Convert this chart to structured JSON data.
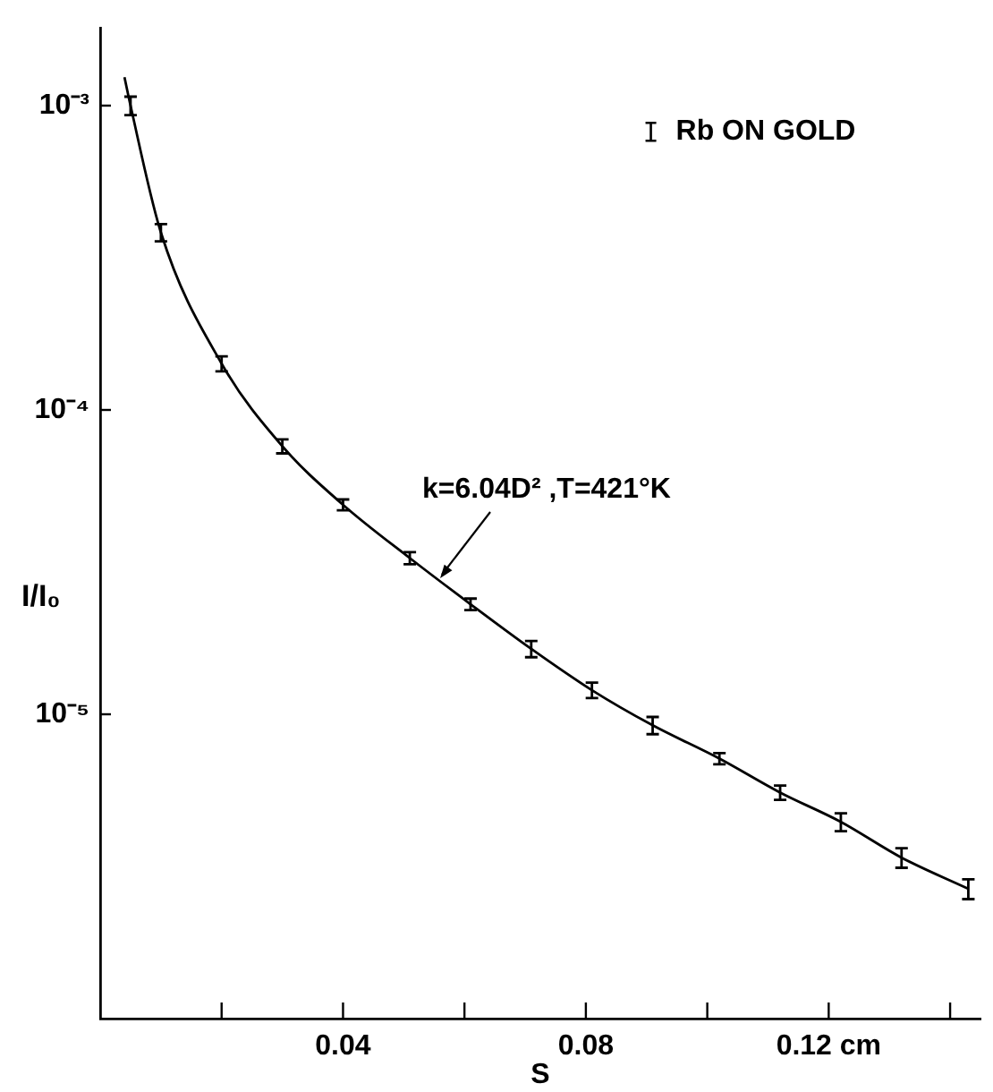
{
  "chart_data": {
    "type": "scatter",
    "xlabel": "S",
    "ylabel": "I/I₀",
    "log": "y",
    "legend": "top right",
    "xlim": [
      0,
      0.145
    ],
    "xticks": [
      {
        "value": 0.02,
        "label": null
      },
      {
        "value": 0.04,
        "label": "0.04"
      },
      {
        "value": 0.06,
        "label": null
      },
      {
        "value": 0.08,
        "label": "0.08"
      },
      {
        "value": 0.1,
        "label": null
      },
      {
        "value": 0.12,
        "label": "0.12 cm"
      },
      {
        "value": 0.14,
        "label": null
      }
    ],
    "ylim": [
      1e-06,
      0.0018
    ],
    "yticks": [
      {
        "value": 0.001,
        "label": "10⁻³"
      },
      {
        "value": 0.0001,
        "label": "10⁻⁴"
      },
      {
        "value": 1e-05,
        "label": "10⁻⁵"
      }
    ],
    "annotations": [
      {
        "text": "k=6.04D² ,T=421°K",
        "x": 0.056,
        "y": 2.8e-05
      }
    ],
    "series": [
      {
        "name": "Rb ON GOLD",
        "color": "#000000",
        "x": [
          0.005,
          0.01,
          0.02,
          0.03,
          0.04,
          0.051,
          0.061,
          0.071,
          0.081,
          0.091,
          0.102,
          0.112,
          0.122,
          0.132,
          0.143
        ],
        "values": [
          0.001,
          0.000383,
          0.000142,
          7.6e-05,
          4.88e-05,
          3.26e-05,
          2.3e-05,
          1.64e-05,
          1.2e-05,
          9.2e-06,
          7.15e-06,
          5.53e-06,
          4.43e-06,
          3.38e-06,
          2.67e-06
        ],
        "errors": [
          7e-05,
          2.5e-05,
          8e-06,
          4e-06,
          2e-06,
          1.5e-06,
          1e-06,
          1e-06,
          7e-07,
          6e-07,
          3e-07,
          3e-07,
          3e-07,
          2.5e-07,
          2e-07
        ]
      },
      {
        "type": "line",
        "line_style": "solid",
        "color": "#000000",
        "x": [
          0.004,
          0.005,
          0.01,
          0.02,
          0.03,
          0.04,
          0.051,
          0.061,
          0.071,
          0.081,
          0.091,
          0.102,
          0.112,
          0.122,
          0.132,
          0.143
        ],
        "values": [
          0.00124,
          0.001,
          0.000383,
          0.000142,
          7.6e-05,
          4.88e-05,
          3.26e-05,
          2.3e-05,
          1.64e-05,
          1.2e-05,
          9.2e-06,
          7.15e-06,
          5.53e-06,
          4.43e-06,
          3.38e-06,
          2.67e-06
        ]
      }
    ]
  }
}
